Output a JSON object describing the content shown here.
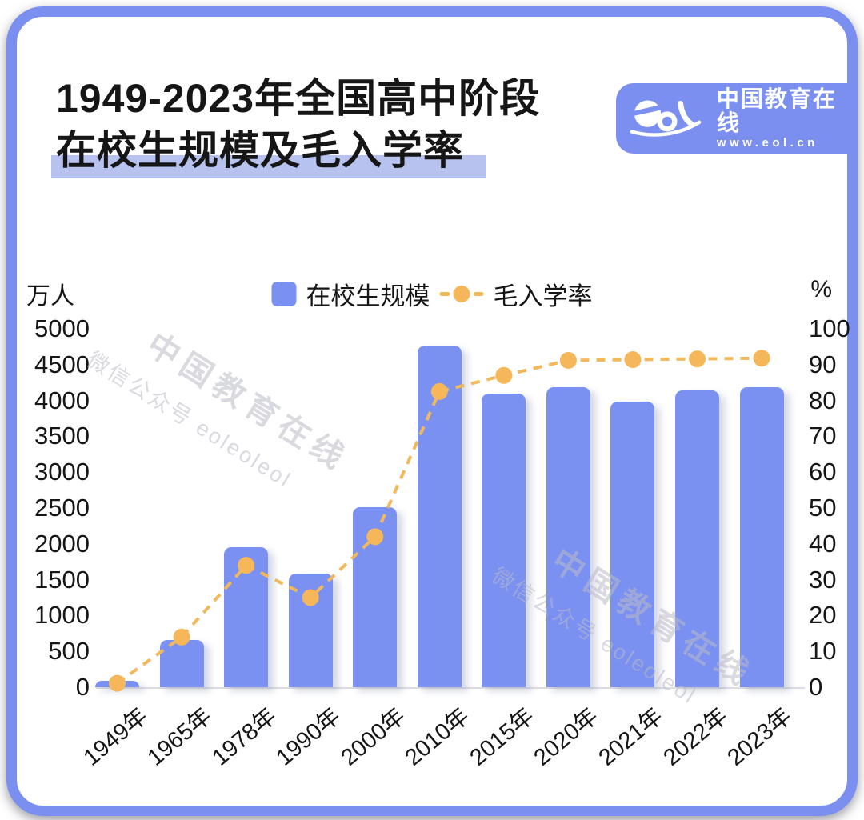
{
  "header": {
    "title_line1": "1949-2023年全国高中阶段",
    "title_line2": "在校生规模及毛入学率"
  },
  "logo": {
    "script": "eol",
    "name": "中国教育在线",
    "url": "www.eol.cn"
  },
  "watermark": {
    "line1": "中国教育在线",
    "line2": "微信公众号 eoleoleol"
  },
  "colors": {
    "card_border": "#7B8FF1",
    "bar_blue": "#7B91F1",
    "title_highlight": "#B7C3EE",
    "line_amber": "#F2B95C",
    "point_amber": "#F5B75A",
    "watermark_gray": "#BABAC6",
    "axis_text": "#161616"
  },
  "chart_data": {
    "type": "bar",
    "subtype": "bar+line combo, dual axis",
    "title": "1949-2023年全国高中阶段在校生规模及毛入学率",
    "categories": [
      "1949年",
      "1965年",
      "1978年",
      "1990年",
      "2000年",
      "2010年",
      "2015年",
      "2020年",
      "2021年",
      "2022年",
      "2023年"
    ],
    "series": [
      {
        "name": "在校生规模",
        "type": "bar",
        "axis": "left",
        "unit": "万人",
        "values": [
          90,
          660,
          1950,
          1590,
          2510,
          4770,
          4100,
          4190,
          3980,
          4140,
          4180
        ]
      },
      {
        "name": "毛入学率",
        "type": "line",
        "style": "dashed-with-dots",
        "axis": "right",
        "unit": "%",
        "values": [
          1.1,
          14,
          34,
          25,
          42,
          82.5,
          87,
          91.2,
          91.4,
          91.6,
          91.8
        ]
      }
    ],
    "left_axis": {
      "unit_label": "万人",
      "range": [
        0,
        5000
      ],
      "tick_step": 500,
      "ticks": [
        5000,
        4500,
        4000,
        3500,
        3000,
        2500,
        2000,
        1500,
        1000,
        500,
        0
      ]
    },
    "right_axis": {
      "unit_label": "%",
      "range": [
        0,
        100
      ],
      "tick_step": 10,
      "ticks": [
        100,
        90,
        80,
        70,
        60,
        50,
        40,
        30,
        20,
        10,
        0
      ]
    },
    "legend_position": "top-center",
    "grid": false
  }
}
